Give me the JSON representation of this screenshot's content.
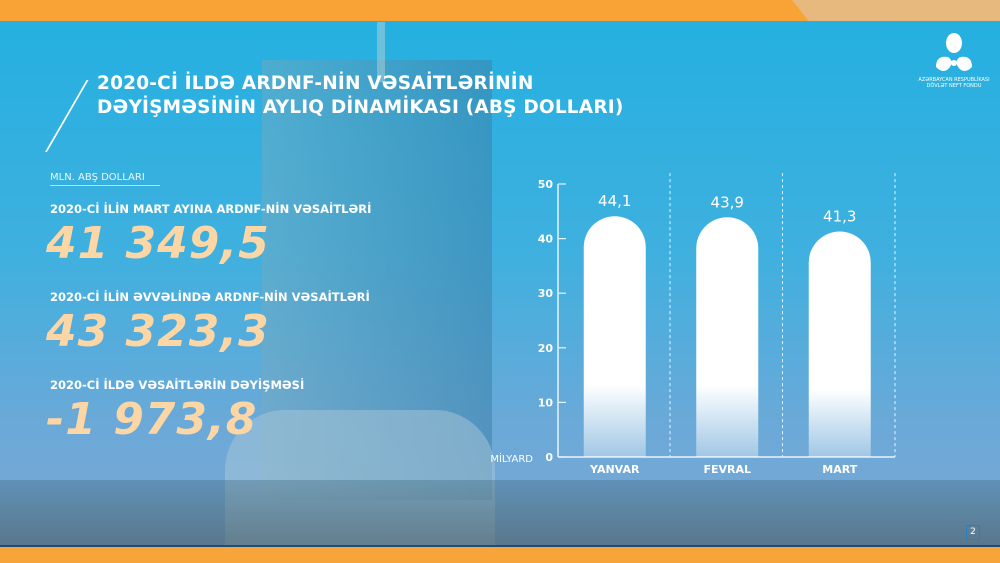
{
  "header": {
    "title_line1": "2020-Cİ İLDƏ ARDNF-NİN VƏSAİTLƏRİNİN",
    "title_line2": "DƏYİŞMƏSİNİN AYLIQ DİNAMİKASI (ABŞ DOLLARI)"
  },
  "logo": {
    "line1": "AZƏRBAYCAN RESPUBLİKASI",
    "line2": "DÖVLƏT NEFT FONDU"
  },
  "stats": {
    "unit": "MLN. ABŞ DOLLARI",
    "items": [
      {
        "label": "2020-Cİ İLİN MART AYINA ARDNF-NİN VƏSAİTLƏRİ",
        "value": "41 349,5"
      },
      {
        "label": "2020-Cİ İLİN ƏVVƏLİNDƏ ARDNF-NİN VƏSAİTLƏRİ",
        "value": "43 323,3"
      },
      {
        "label": "2020-Cİ İLDƏ VƏSAİTLƏRİN DƏYİŞMƏSİ",
        "value": "-1 973,8"
      }
    ]
  },
  "chart_data": {
    "type": "bar",
    "categories": [
      "YANVAR",
      "FEVRAL",
      "MART"
    ],
    "values": [
      44.1,
      43.9,
      41.3
    ],
    "data_labels": [
      "44,1",
      "43,9",
      "41,3"
    ],
    "ylabel": "MİLYARD",
    "ylim": [
      0,
      50
    ],
    "yticks": [
      0,
      10,
      20,
      30,
      40,
      50
    ],
    "grid": false,
    "bar_color": "#ffffff"
  },
  "page_number": "2",
  "colors": {
    "accent": "#f9a235",
    "value_text": "#fdd6a6",
    "background": "#2bb0e0"
  }
}
